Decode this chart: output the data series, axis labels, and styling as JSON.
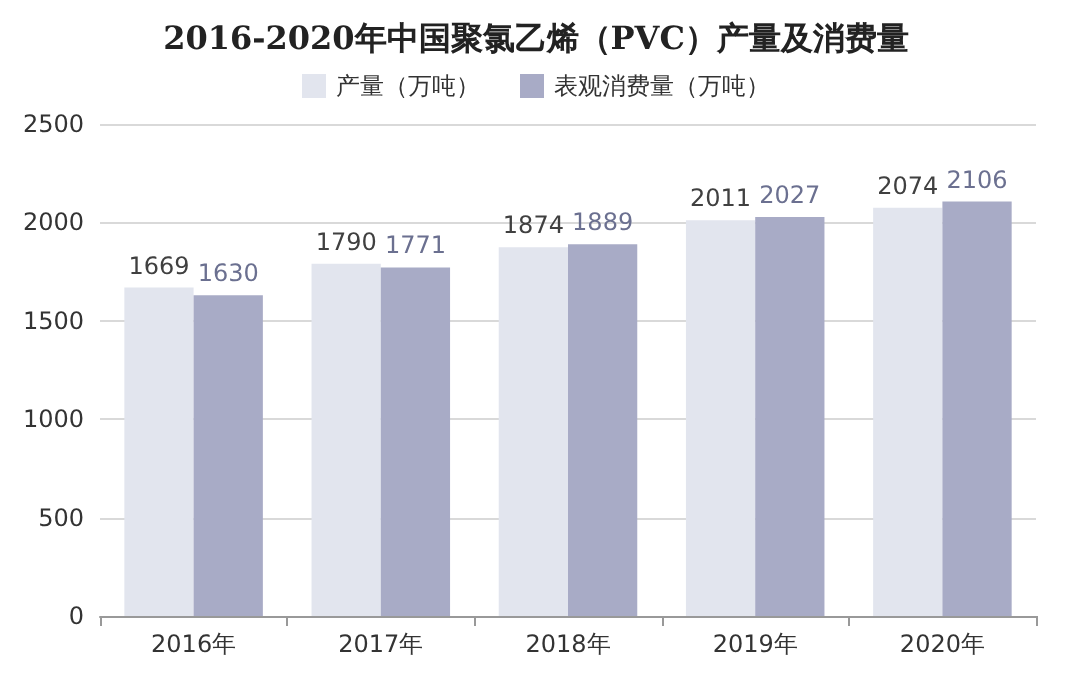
{
  "chart_data": {
    "type": "bar",
    "title": "2016-2020年中国聚氯乙烯（PVC）产量及消费量",
    "categories": [
      "2016年",
      "2017年",
      "2018年",
      "2019年",
      "2020年"
    ],
    "series": [
      {
        "name": "产量（万吨）",
        "color": "#e2e5ee",
        "values": [
          1669,
          1790,
          1874,
          2011,
          2074
        ]
      },
      {
        "name": "表观消费量（万吨）",
        "color": "#a8abc6",
        "values": [
          1630,
          1771,
          1889,
          2027,
          2106
        ]
      }
    ],
    "ylim": [
      0,
      2500
    ],
    "yticks": [
      0,
      500,
      1000,
      1500,
      2000,
      2500
    ],
    "grid": "y",
    "legend": "top",
    "data_labels": true
  }
}
